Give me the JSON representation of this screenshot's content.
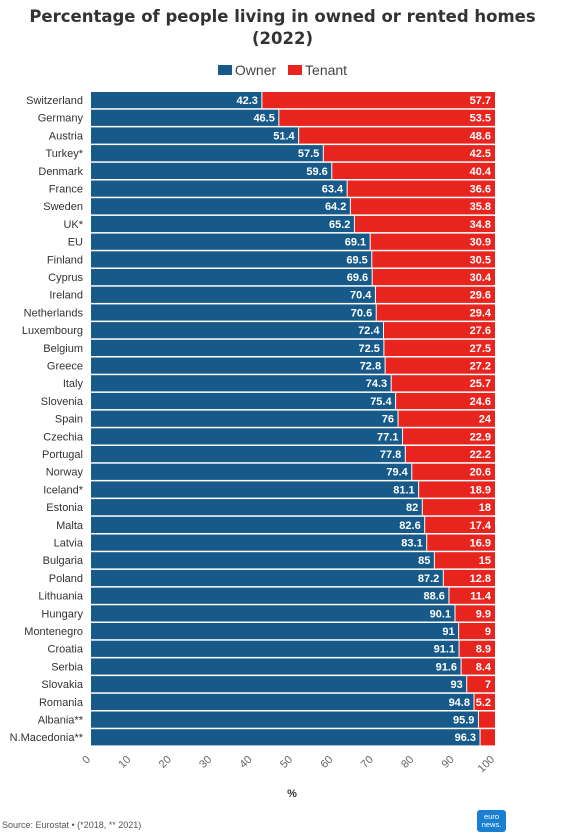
{
  "chart_data": {
    "type": "bar",
    "orientation": "horizontal",
    "stacked": true,
    "title_lines": [
      "Percentage of people living in owned or rented homes",
      "(2022)"
    ],
    "xlabel": "%",
    "xlim": [
      0,
      100
    ],
    "x_ticks": [
      "0",
      "10",
      "20",
      "30",
      "40",
      "50",
      "60",
      "70",
      "80",
      "90",
      "100"
    ],
    "legend_placement": "top-center",
    "categories": [
      "Switzerland",
      "Germany",
      "Austria",
      "Turkey*",
      "Denmark",
      "France",
      "Sweden",
      "UK*",
      "EU",
      "Finland",
      "Cyprus",
      "Ireland",
      "Netherlands",
      "Luxembourg",
      "Belgium",
      "Greece",
      "Italy",
      "Slovenia",
      "Spain",
      "Czechia",
      "Portugal",
      "Norway",
      "Iceland*",
      "Estonia",
      "Malta",
      "Latvia",
      "Bulgaria",
      "Poland",
      "Lithuania",
      "Hungary",
      "Montenegro",
      "Croatia",
      "Serbia",
      "Slovakia",
      "Romania",
      "Albania**",
      "N.Macedonia**"
    ],
    "series": [
      {
        "name": "Owner",
        "color": "#175a8a",
        "values": [
          42.3,
          46.5,
          51.4,
          57.5,
          59.6,
          63.4,
          64.2,
          65.2,
          69.1,
          69.5,
          69.6,
          70.4,
          70.6,
          72.4,
          72.5,
          72.8,
          74.3,
          75.4,
          76,
          77.1,
          77.8,
          79.4,
          81.1,
          82,
          82.6,
          83.1,
          85,
          87.2,
          88.6,
          90.1,
          91,
          91.1,
          91.6,
          93,
          94.8,
          95.9,
          96.3
        ],
        "labels": [
          "42.3",
          "46.5",
          "51.4",
          "57.5",
          "59.6",
          "63.4",
          "64.2",
          "65.2",
          "69.1",
          "69.5",
          "69.6",
          "70.4",
          "70.6",
          "72.4",
          "72.5",
          "72.8",
          "74.3",
          "75.4",
          "76",
          "77.1",
          "77.8",
          "79.4",
          "81.1",
          "82",
          "82.6",
          "83.1",
          "85",
          "87.2",
          "88.6",
          "90.1",
          "91",
          "91.1",
          "91.6",
          "93",
          "94.8",
          "95.9",
          "96.3"
        ]
      },
      {
        "name": "Tenant",
        "color": "#e8241f",
        "values": [
          57.7,
          53.5,
          48.6,
          42.5,
          40.4,
          36.6,
          35.8,
          34.8,
          30.9,
          30.5,
          30.4,
          29.6,
          29.4,
          27.6,
          27.5,
          27.2,
          25.7,
          24.6,
          24,
          22.9,
          22.2,
          20.6,
          18.9,
          18,
          17.4,
          16.9,
          15,
          12.8,
          11.4,
          9.9,
          9,
          8.9,
          8.4,
          7,
          5.2,
          4.1,
          3.7
        ],
        "labels": [
          "57.7",
          "53.5",
          "48.6",
          "42.5",
          "40.4",
          "36.6",
          "35.8",
          "34.8",
          "30.9",
          "30.5",
          "30.4",
          "29.6",
          "29.4",
          "27.6",
          "27.5",
          "27.2",
          "25.7",
          "24.6",
          "24",
          "22.9",
          "22.2",
          "20.6",
          "18.9",
          "18",
          "17.4",
          "16.9",
          "15",
          "12.8",
          "11.4",
          "9.9",
          "9",
          "8.9",
          "8.4",
          "7",
          "5.2",
          "",
          ""
        ]
      }
    ]
  },
  "footer": {
    "source": "Source: Eurostat • (*2018, ** 2021)",
    "logo_line1": "euro",
    "logo_line2": "news."
  }
}
